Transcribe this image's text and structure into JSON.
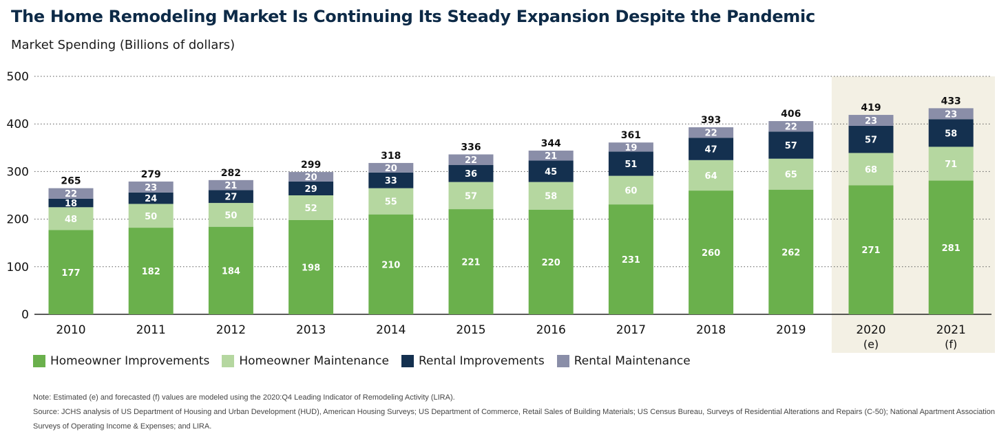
{
  "title": "The Home Remodeling Market Is Continuing Its Steady Expansion Despite the Pandemic",
  "subtitle": "Market Spending (Billions of dollars)",
  "chart_data": {
    "type": "bar",
    "stacked": true,
    "categories": [
      "2010",
      "2011",
      "2012",
      "2013",
      "2014",
      "2015",
      "2016",
      "2017",
      "2018",
      "2019",
      "2020",
      "2021"
    ],
    "category_suffix": [
      "",
      "",
      "",
      "",
      "",
      "",
      "",
      "",
      "",
      "",
      "(e)",
      "(f)"
    ],
    "series": [
      {
        "name": "Homeowner Improvements",
        "color": "#6ab04c",
        "values": [
          177,
          182,
          184,
          198,
          210,
          221,
          220,
          231,
          260,
          262,
          271,
          281
        ]
      },
      {
        "name": "Homeowner Maintenance",
        "color": "#b5d7a0",
        "values": [
          48,
          50,
          50,
          52,
          55,
          57,
          58,
          60,
          64,
          65,
          68,
          71
        ]
      },
      {
        "name": "Rental Improvements",
        "color": "#14304f",
        "values": [
          18,
          24,
          27,
          29,
          33,
          36,
          45,
          51,
          47,
          57,
          57,
          58
        ]
      },
      {
        "name": "Rental Maintenance",
        "color": "#8a8ea8",
        "values": [
          22,
          23,
          21,
          20,
          20,
          22,
          21,
          19,
          22,
          22,
          23,
          23
        ]
      }
    ],
    "totals": [
      265,
      279,
      282,
      299,
      318,
      336,
      344,
      361,
      393,
      406,
      419,
      433
    ],
    "ylim": [
      0,
      500
    ],
    "yticks": [
      0,
      100,
      200,
      300,
      400,
      500
    ],
    "grid": true,
    "highlighted_categories": [
      "2020",
      "2021"
    ],
    "highlight_color": "#f3f0e4",
    "legend_position": "bottom"
  },
  "notes": [
    "Note: Estimated (e) and forecasted (f) values are modeled using the 2020:Q4 Leading Indicator of Remodeling Activity (LIRA).",
    "Source: JCHS analysis of US Department of Housing and Urban Development (HUD), American Housing Surveys; US Department of Commerce, Retail Sales of Building Materials; US Census Bureau, Surveys of Residential Alterations and Repairs (C-50); National Apartment Association (NAA),",
    "Surveys of Operating Income & Expenses; and LIRA."
  ]
}
